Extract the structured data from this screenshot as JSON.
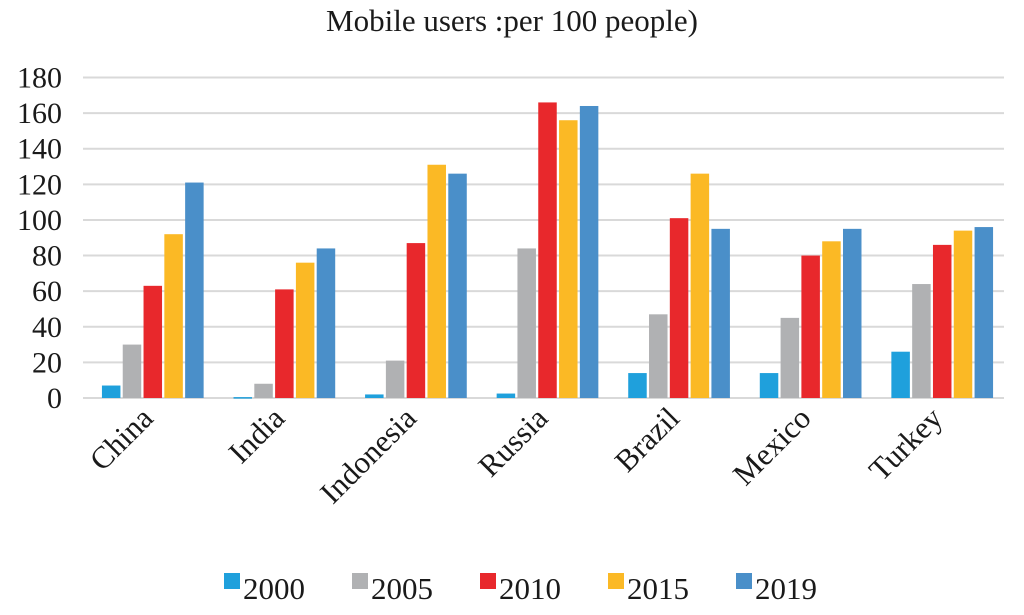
{
  "chart_data": {
    "type": "bar",
    "title": "Mobile users :per 100 people)",
    "xlabel": "",
    "ylabel": "",
    "ylim": [
      0,
      180
    ],
    "yticks": [
      "0",
      "20",
      "40",
      "60",
      "80",
      "100",
      "120",
      "140",
      "160",
      "180"
    ],
    "grid": true,
    "legend_position": "bottom",
    "categories": [
      "China",
      "India",
      "Indonesia",
      "Russia",
      "Brazil",
      "Mexico",
      "Turkey"
    ],
    "series": [
      {
        "name": "2000",
        "color": "#1fa0dc",
        "values": [
          7,
          0.5,
          2,
          2.5,
          14,
          14,
          26
        ]
      },
      {
        "name": "2005",
        "color": "#b0b1b3",
        "values": [
          30,
          8,
          21,
          84,
          47,
          45,
          64
        ]
      },
      {
        "name": "2010",
        "color": "#e8282c",
        "values": [
          63,
          61,
          87,
          166,
          101,
          80,
          86
        ]
      },
      {
        "name": "2015",
        "color": "#fbb925",
        "values": [
          92,
          76,
          131,
          156,
          126,
          88,
          94
        ]
      },
      {
        "name": "2019",
        "color": "#4a8fc9",
        "values": [
          121,
          84,
          126,
          164,
          95,
          95,
          96
        ]
      }
    ]
  }
}
